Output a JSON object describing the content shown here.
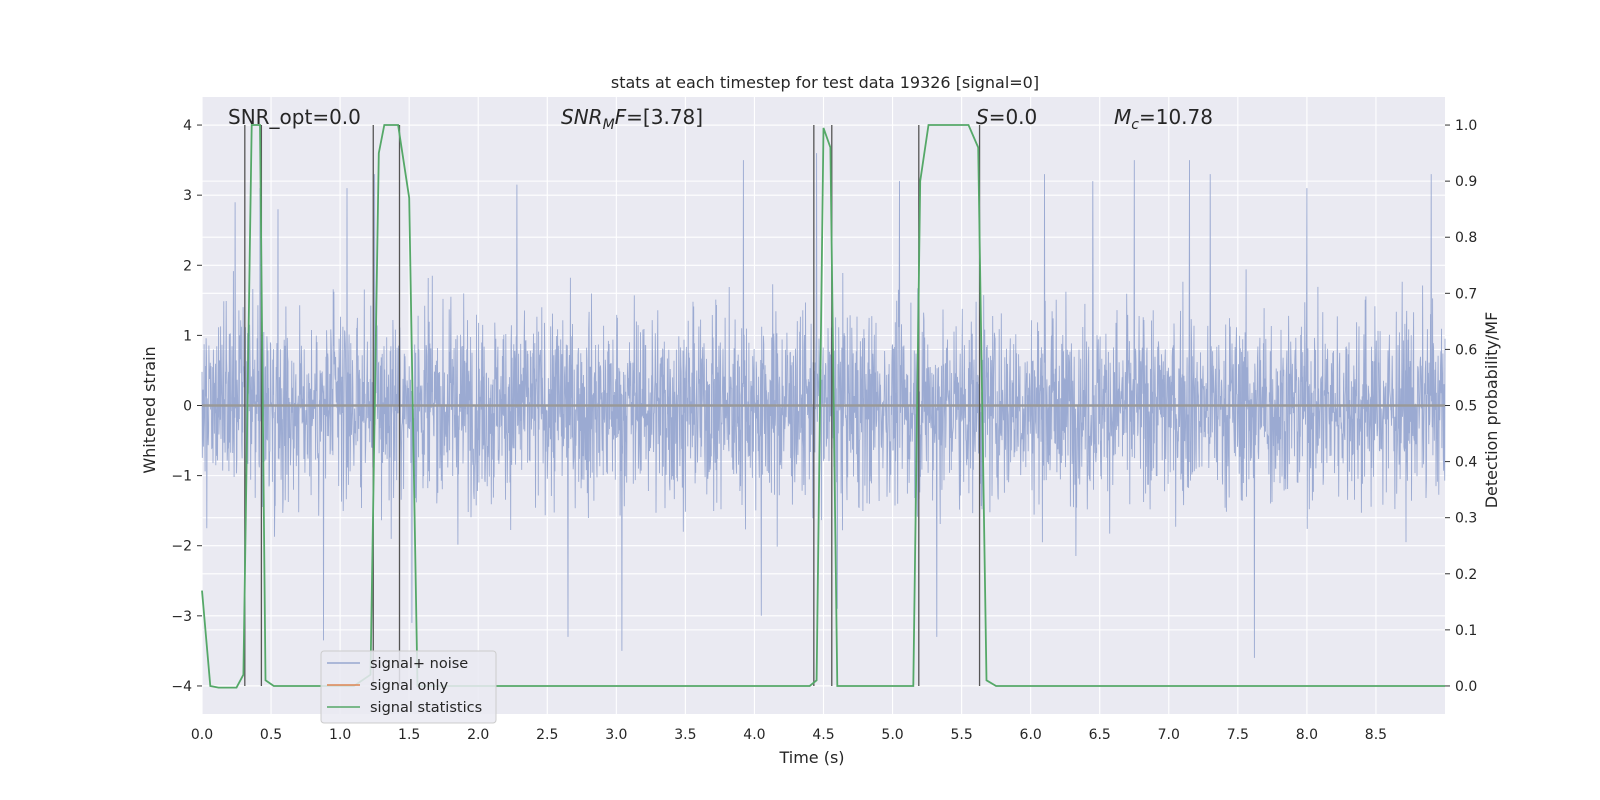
{
  "chart_data": {
    "type": "line",
    "title": "stats at each timestep for test data 19326 [signal=0]",
    "xlabel": "Time (s)",
    "ylabel_left": "Whitened strain",
    "ylabel_right": "Detection probability/MF",
    "xlim": [
      0.0,
      9.0
    ],
    "ylim_left": [
      -4.4,
      4.4
    ],
    "ylim_right": [
      -0.05,
      1.05
    ],
    "x_ticks": [
      "0.0",
      "0.5",
      "1.0",
      "1.5",
      "2.0",
      "2.5",
      "3.0",
      "3.5",
      "4.0",
      "4.5",
      "5.0",
      "5.5",
      "6.0",
      "6.5",
      "7.0",
      "7.5",
      "8.0",
      "8.5"
    ],
    "y_ticks_left": [
      "4",
      "3",
      "2",
      "1",
      "0",
      "−1",
      "−2",
      "−3",
      "−4"
    ],
    "y_ticks_right": [
      "1.0",
      "0.9",
      "0.8",
      "0.7",
      "0.6",
      "0.5",
      "0.4",
      "0.3",
      "0.2",
      "0.1",
      "0.0"
    ],
    "grid": true,
    "legend_position": "lower-left",
    "annotations": {
      "snr_opt": "SNR_opt=0.0",
      "snr_mf_base": "SNR",
      "snr_mf_sub": "M",
      "snr_mf_tail": "F=[3.78]",
      "s_base": "S",
      "s_tail": "=0.0",
      "mc_base": "M",
      "mc_sub": "c",
      "mc_tail": "=10.78"
    },
    "series": [
      {
        "name": "signal+ noise",
        "color": "#97a7d0",
        "description_level": "whitened strain noise, roughly within ±1.5 with spikes to ±3.5",
        "peaks": [
          [
            0.24,
            2.9
          ],
          [
            0.42,
            3.1
          ],
          [
            0.55,
            2.8
          ],
          [
            0.88,
            -3.35
          ],
          [
            1.05,
            3.1
          ],
          [
            1.25,
            3.3
          ],
          [
            1.52,
            -3.1
          ],
          [
            2.28,
            3.15
          ],
          [
            2.65,
            -3.3
          ],
          [
            3.04,
            -3.5
          ],
          [
            3.92,
            3.5
          ],
          [
            4.05,
            -3.0
          ],
          [
            4.45,
            3.6
          ],
          [
            4.6,
            -2.9
          ],
          [
            5.05,
            3.2
          ],
          [
            5.32,
            -3.3
          ],
          [
            6.1,
            3.3
          ],
          [
            6.45,
            3.2
          ],
          [
            6.75,
            3.5
          ],
          [
            7.15,
            3.5
          ],
          [
            7.3,
            3.3
          ],
          [
            7.62,
            -3.6
          ],
          [
            8.0,
            3.1
          ],
          [
            8.9,
            3.3
          ]
        ]
      },
      {
        "name": "signal only",
        "color": "#dd8452",
        "values": []
      },
      {
        "name": "signal statistics",
        "color": "#55a868",
        "axis": "right",
        "points": [
          [
            0.0,
            0.17
          ],
          [
            0.06,
            0.0
          ],
          [
            0.12,
            -0.003
          ],
          [
            0.18,
            -0.003
          ],
          [
            0.25,
            -0.003
          ],
          [
            0.3,
            0.02
          ],
          [
            0.36,
            1.0
          ],
          [
            0.42,
            1.0
          ],
          [
            0.46,
            0.01
          ],
          [
            0.52,
            0.0
          ],
          [
            0.6,
            0.0
          ],
          [
            0.85,
            0.0
          ],
          [
            1.1,
            0.0
          ],
          [
            1.22,
            0.02
          ],
          [
            1.28,
            0.95
          ],
          [
            1.32,
            1.0
          ],
          [
            1.42,
            1.0
          ],
          [
            1.5,
            0.87
          ],
          [
            1.56,
            0.0
          ],
          [
            2.0,
            0.0
          ],
          [
            3.0,
            0.0
          ],
          [
            4.0,
            0.0
          ],
          [
            4.4,
            0.0
          ],
          [
            4.45,
            0.01
          ],
          [
            4.5,
            0.995
          ],
          [
            4.55,
            0.96
          ],
          [
            4.6,
            0.0
          ],
          [
            5.0,
            0.0
          ],
          [
            5.15,
            0.0
          ],
          [
            5.2,
            0.9
          ],
          [
            5.26,
            1.0
          ],
          [
            5.55,
            1.0
          ],
          [
            5.62,
            0.96
          ],
          [
            5.68,
            0.01
          ],
          [
            5.75,
            0.0
          ],
          [
            6.5,
            0.0
          ],
          [
            7.5,
            0.0
          ],
          [
            8.5,
            0.0
          ],
          [
            9.0,
            0.0
          ]
        ]
      }
    ],
    "vertical_markers": [
      0.31,
      0.43,
      1.24,
      1.43,
      4.43,
      4.56,
      5.19,
      5.63
    ]
  }
}
